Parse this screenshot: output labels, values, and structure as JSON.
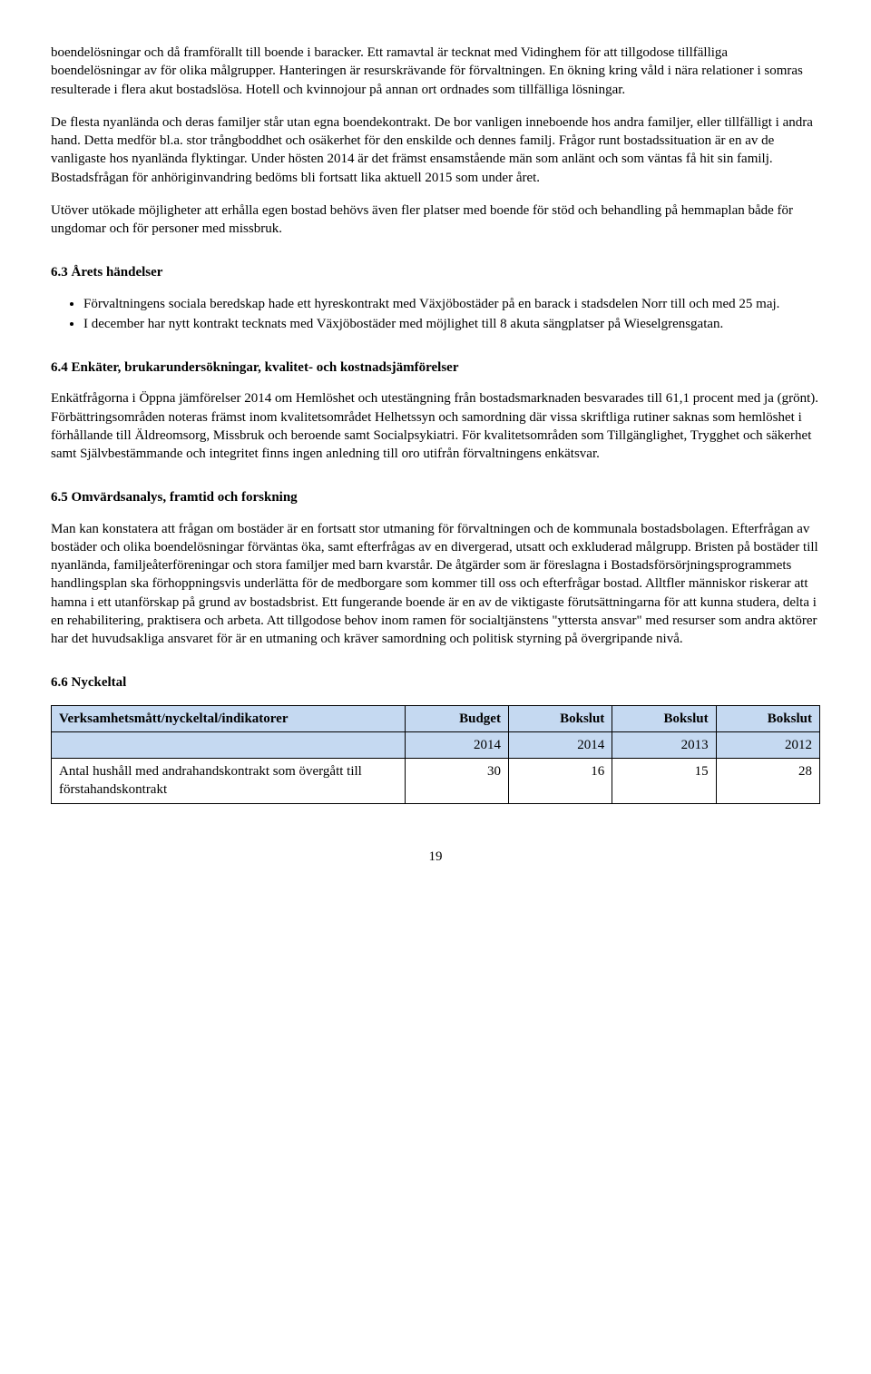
{
  "para1": "boendelösningar och då framförallt till boende i baracker. Ett ramavtal är tecknat med Vidinghem för att tillgodose tillfälliga boendelösningar av för olika målgrupper. Hanteringen är resurskrävande för förvaltningen. En ökning kring våld i nära relationer i somras resulterade i flera akut bostadslösa. Hotell och kvinnojour på annan ort ordnades som tillfälliga lösningar.",
  "para2": "De flesta nyanlända och deras familjer står utan egna boendekontrakt. De bor vanligen inneboende hos andra familjer, eller tillfälligt i andra hand. Detta medför bl.a. stor trångboddhet och osäkerhet för den enskilde och dennes familj. Frågor runt bostadssituation är en av de vanligaste hos nyanlända flyktingar. Under hösten 2014 är det främst ensamstående män som anlänt och som väntas få hit sin familj. Bostadsfrågan för anhöriginvandring bedöms bli fortsatt lika aktuell 2015 som under året.",
  "para3": "Utöver utökade möjligheter att erhålla egen bostad behövs även fler platser med boende för stöd och behandling på hemmaplan både för ungdomar och för personer med missbruk.",
  "sec63_title": "6.3 Årets händelser",
  "sec63_bullets": [
    "Förvaltningens sociala beredskap hade ett hyreskontrakt med Växjöbostäder på en barack i stadsdelen Norr till och med 25 maj.",
    "I december har nytt kontrakt tecknats med Växjöbostäder med möjlighet till 8 akuta sängplatser på Wieselgrensgatan."
  ],
  "sec64_title": "6.4 Enkäter, brukarundersökningar, kvalitet- och kostnadsjämförelser",
  "sec64_para": "Enkätfrågorna i Öppna jämförelser 2014 om Hemlöshet och utestängning från bostadsmarknaden besvarades till 61,1 procent med ja (grönt). Förbättringsområden noteras främst inom kvalitetsområdet Helhetssyn och samordning där vissa skriftliga rutiner saknas som hemlöshet i förhållande till Äldreomsorg, Missbruk och beroende samt Socialpsykiatri. För kvalitetsområden som Tillgänglighet, Trygghet och säkerhet samt Självbestämmande och integritet finns ingen anledning till oro utifrån förvaltningens enkätsvar.",
  "sec65_title": "6.5 Omvärdsanalys, framtid och forskning",
  "sec65_para": "Man kan konstatera att frågan om bostäder är en fortsatt stor utmaning för förvaltningen och de kommunala bostadsbolagen. Efterfrågan av bostäder och olika boendelösningar förväntas öka, samt efterfrågas av en divergerad, utsatt och exkluderad målgrupp. Bristen på bostäder till nyanlända, familjeåterföreningar och stora familjer med barn kvarstår. De åtgärder som är föreslagna i Bostadsförsörjningsprogrammets handlingsplan ska förhoppningsvis underlätta för de medborgare som kommer till oss och efterfrågar bostad. Alltfler människor riskerar att hamna i ett utanförskap på grund av bostadsbrist. Ett fungerande boende är en av de viktigaste förutsättningarna för att kunna studera, delta i en rehabilitering, praktisera och arbeta. Att tillgodose behov inom ramen för socialtjänstens \"yttersta ansvar\" med resurser som andra aktörer har det huvudsakliga ansvaret för är en utmaning och kräver samordning och politisk styrning på övergripande nivå.",
  "sec66_title": "6.6 Nyckeltal",
  "table": {
    "header_bg": "#c5d9f1",
    "columns": [
      {
        "label": "Verksamhetsmått/nyckeltal/indikatorer",
        "align": "left",
        "width": "46%"
      },
      {
        "label": "Budget",
        "align": "right",
        "width": "13.5%"
      },
      {
        "label": "Bokslut",
        "align": "right",
        "width": "13.5%"
      },
      {
        "label": "Bokslut",
        "align": "right",
        "width": "13.5%"
      },
      {
        "label": "Bokslut",
        "align": "right",
        "width": "13.5%"
      }
    ],
    "sub_years": [
      "",
      "2014",
      "2014",
      "2013",
      "2012"
    ],
    "rows": [
      {
        "label": "Antal hushåll med andrahandskontrakt som övergått till förstahandskontrakt",
        "values": [
          "30",
          "16",
          "15",
          "28"
        ]
      }
    ]
  },
  "page_number": "19"
}
